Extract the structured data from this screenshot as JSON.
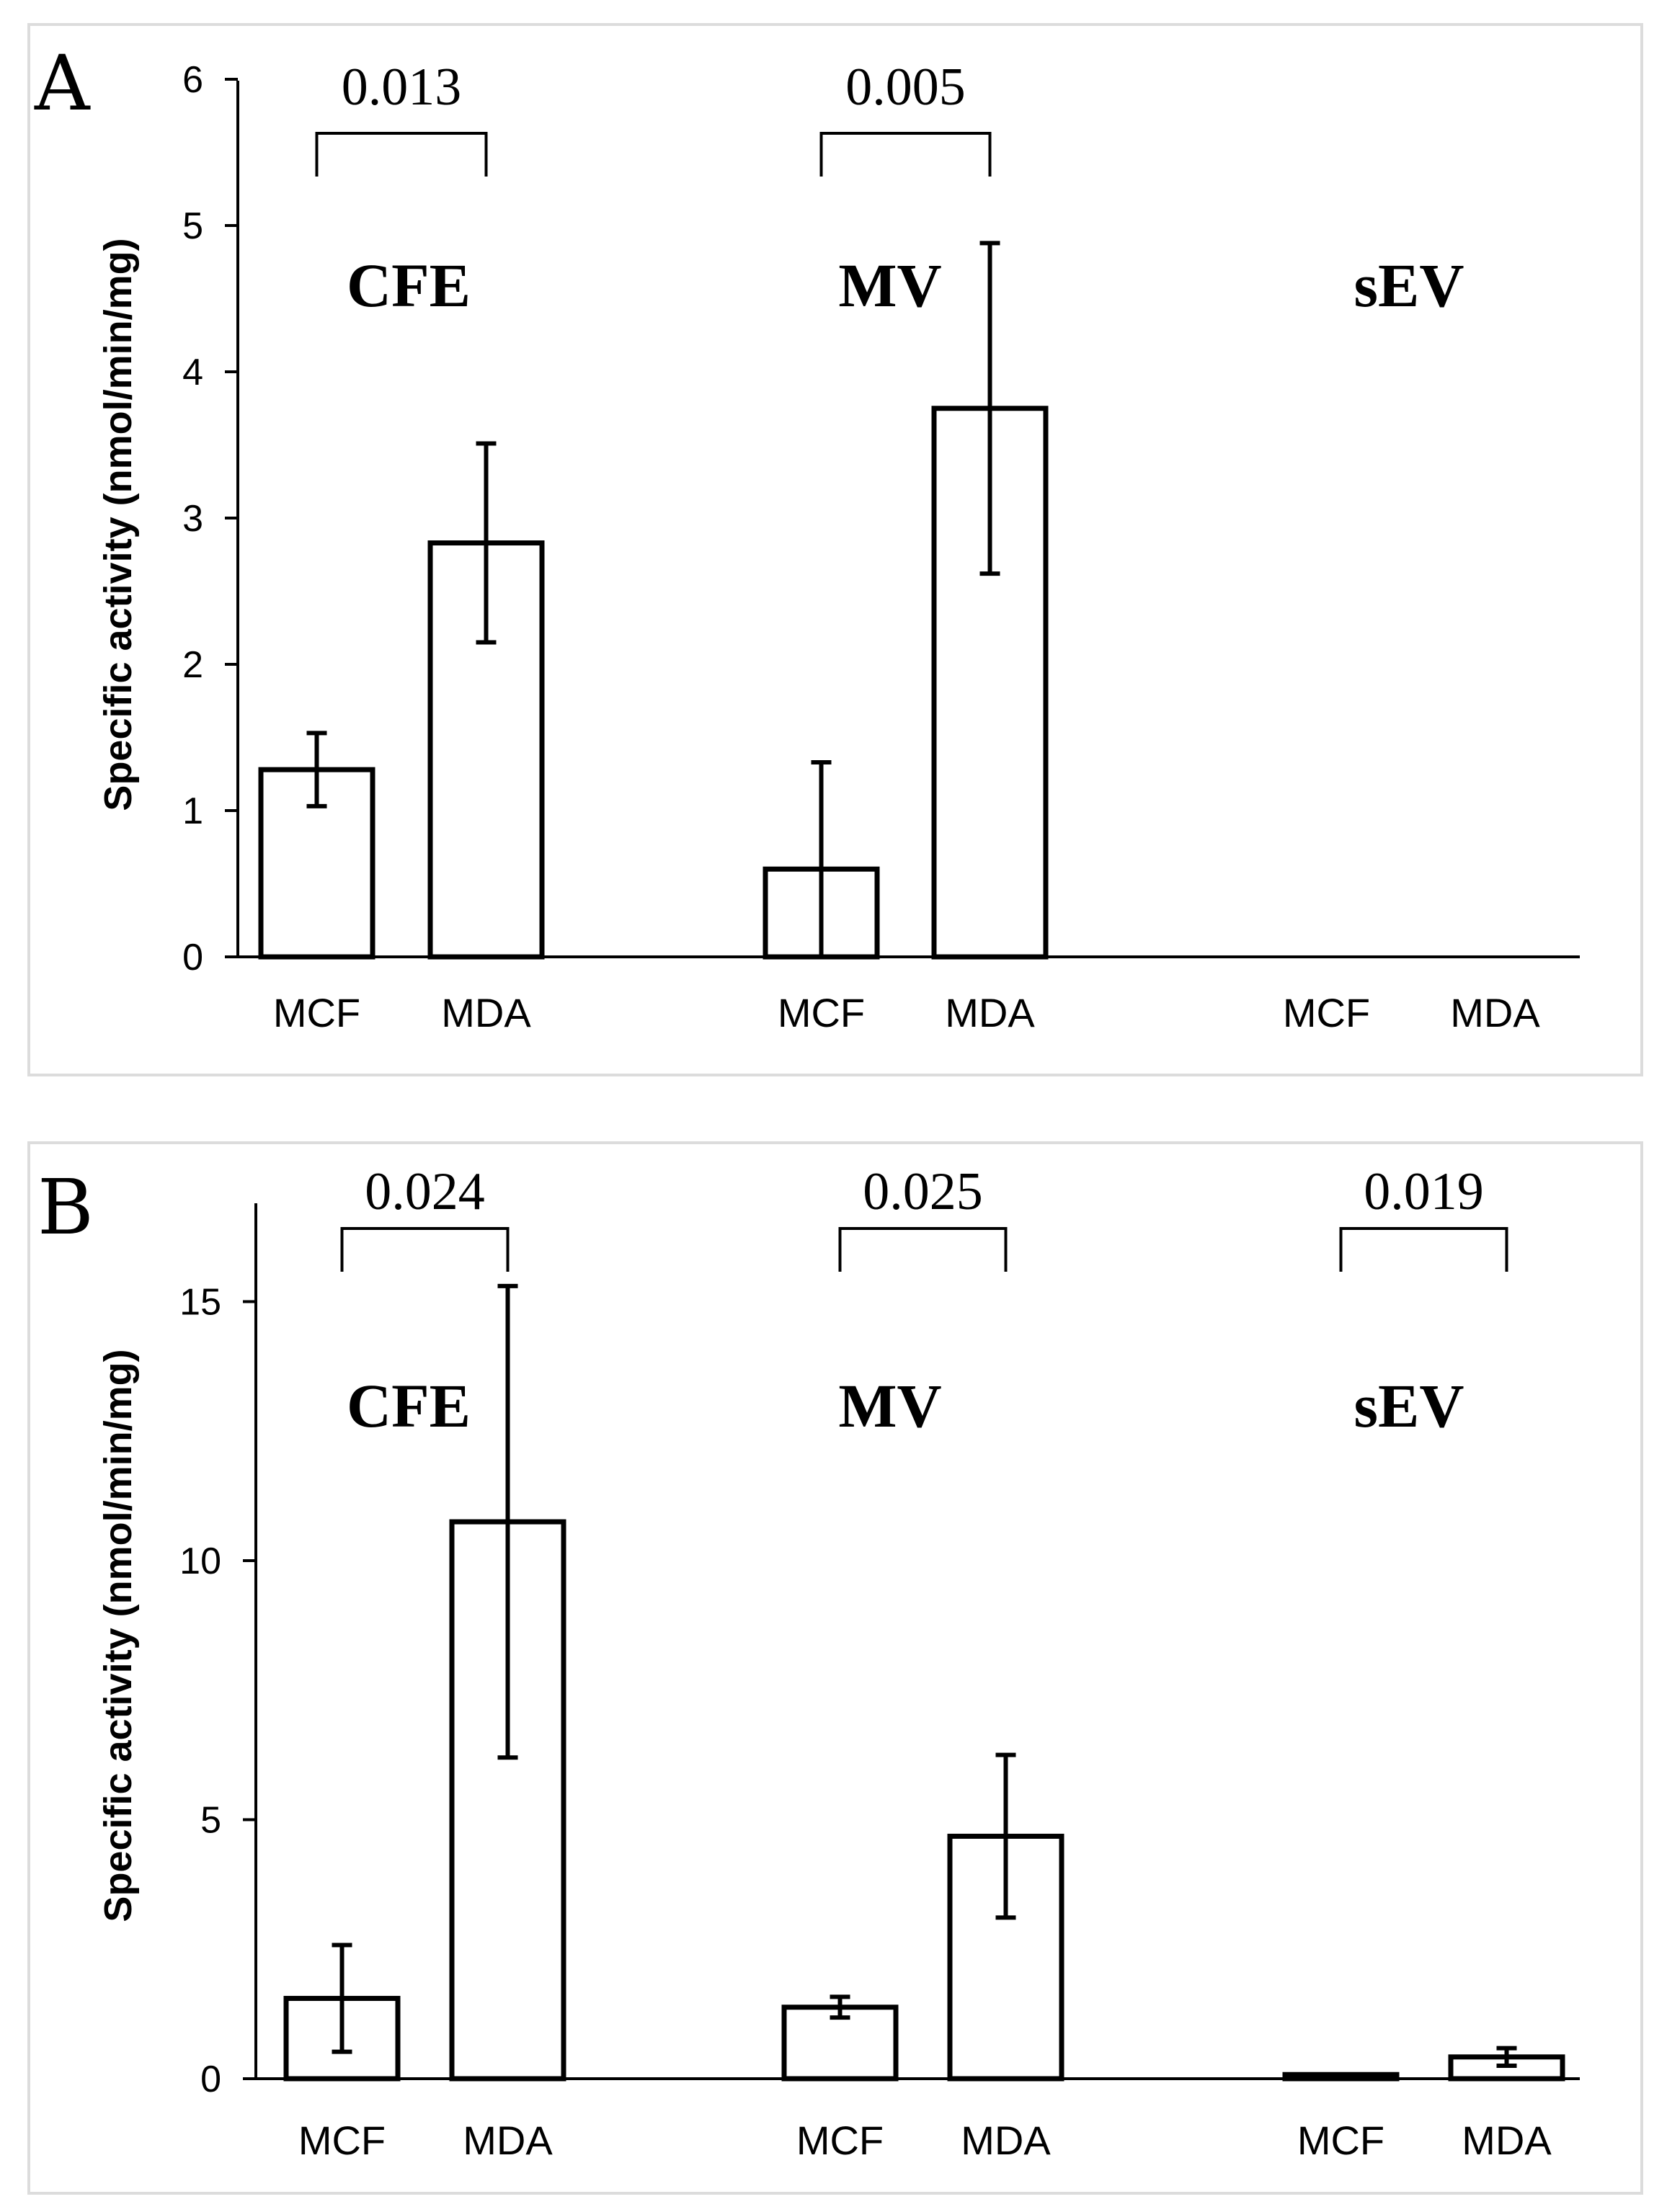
{
  "chart_data": [
    {
      "panel": "A",
      "type": "bar",
      "ylabel": "Specific activity (nmol/min/mg)",
      "ylim": [
        0,
        6
      ],
      "yticks": [
        0,
        1,
        2,
        3,
        4,
        5,
        6
      ],
      "groups": [
        {
          "name": "CFE",
          "pvalue": "0.013",
          "bars": [
            {
              "category": "MCF",
              "value": 1.28,
              "error": 0.25
            },
            {
              "category": "MDA",
              "value": 2.83,
              "error": 0.68
            }
          ]
        },
        {
          "name": "MV",
          "pvalue": "0.005",
          "bars": [
            {
              "category": "MCF",
              "value": 0.6,
              "error": 0.73
            },
            {
              "category": "MDA",
              "value": 3.75,
              "error": 1.13
            }
          ]
        },
        {
          "name": "sEV",
          "pvalue": null,
          "bars": [
            {
              "category": "MCF",
              "value": 0,
              "error": 0
            },
            {
              "category": "MDA",
              "value": 0,
              "error": 0
            }
          ]
        }
      ]
    },
    {
      "panel": "B",
      "type": "bar",
      "ylabel": "Specific activity (nmol/min/mg)",
      "ylim": [
        0,
        17
      ],
      "yticks": [
        0,
        5,
        10,
        15
      ],
      "groups": [
        {
          "name": "CFE",
          "pvalue": "0.024",
          "bars": [
            {
              "category": "MCF",
              "value": 1.55,
              "error": 1.03
            },
            {
              "category": "MDA",
              "value": 10.75,
              "error": 4.55
            }
          ]
        },
        {
          "name": "MV",
          "pvalue": "0.025",
          "bars": [
            {
              "category": "MCF",
              "value": 1.38,
              "error": 0.2
            },
            {
              "category": "MDA",
              "value": 4.68,
              "error": 1.57
            }
          ]
        },
        {
          "name": "sEV",
          "pvalue": "0.019",
          "bars": [
            {
              "category": "MCF",
              "value": 0.08,
              "error": 0
            },
            {
              "category": "MDA",
              "value": 0.42,
              "error": 0.17
            }
          ]
        }
      ]
    }
  ]
}
